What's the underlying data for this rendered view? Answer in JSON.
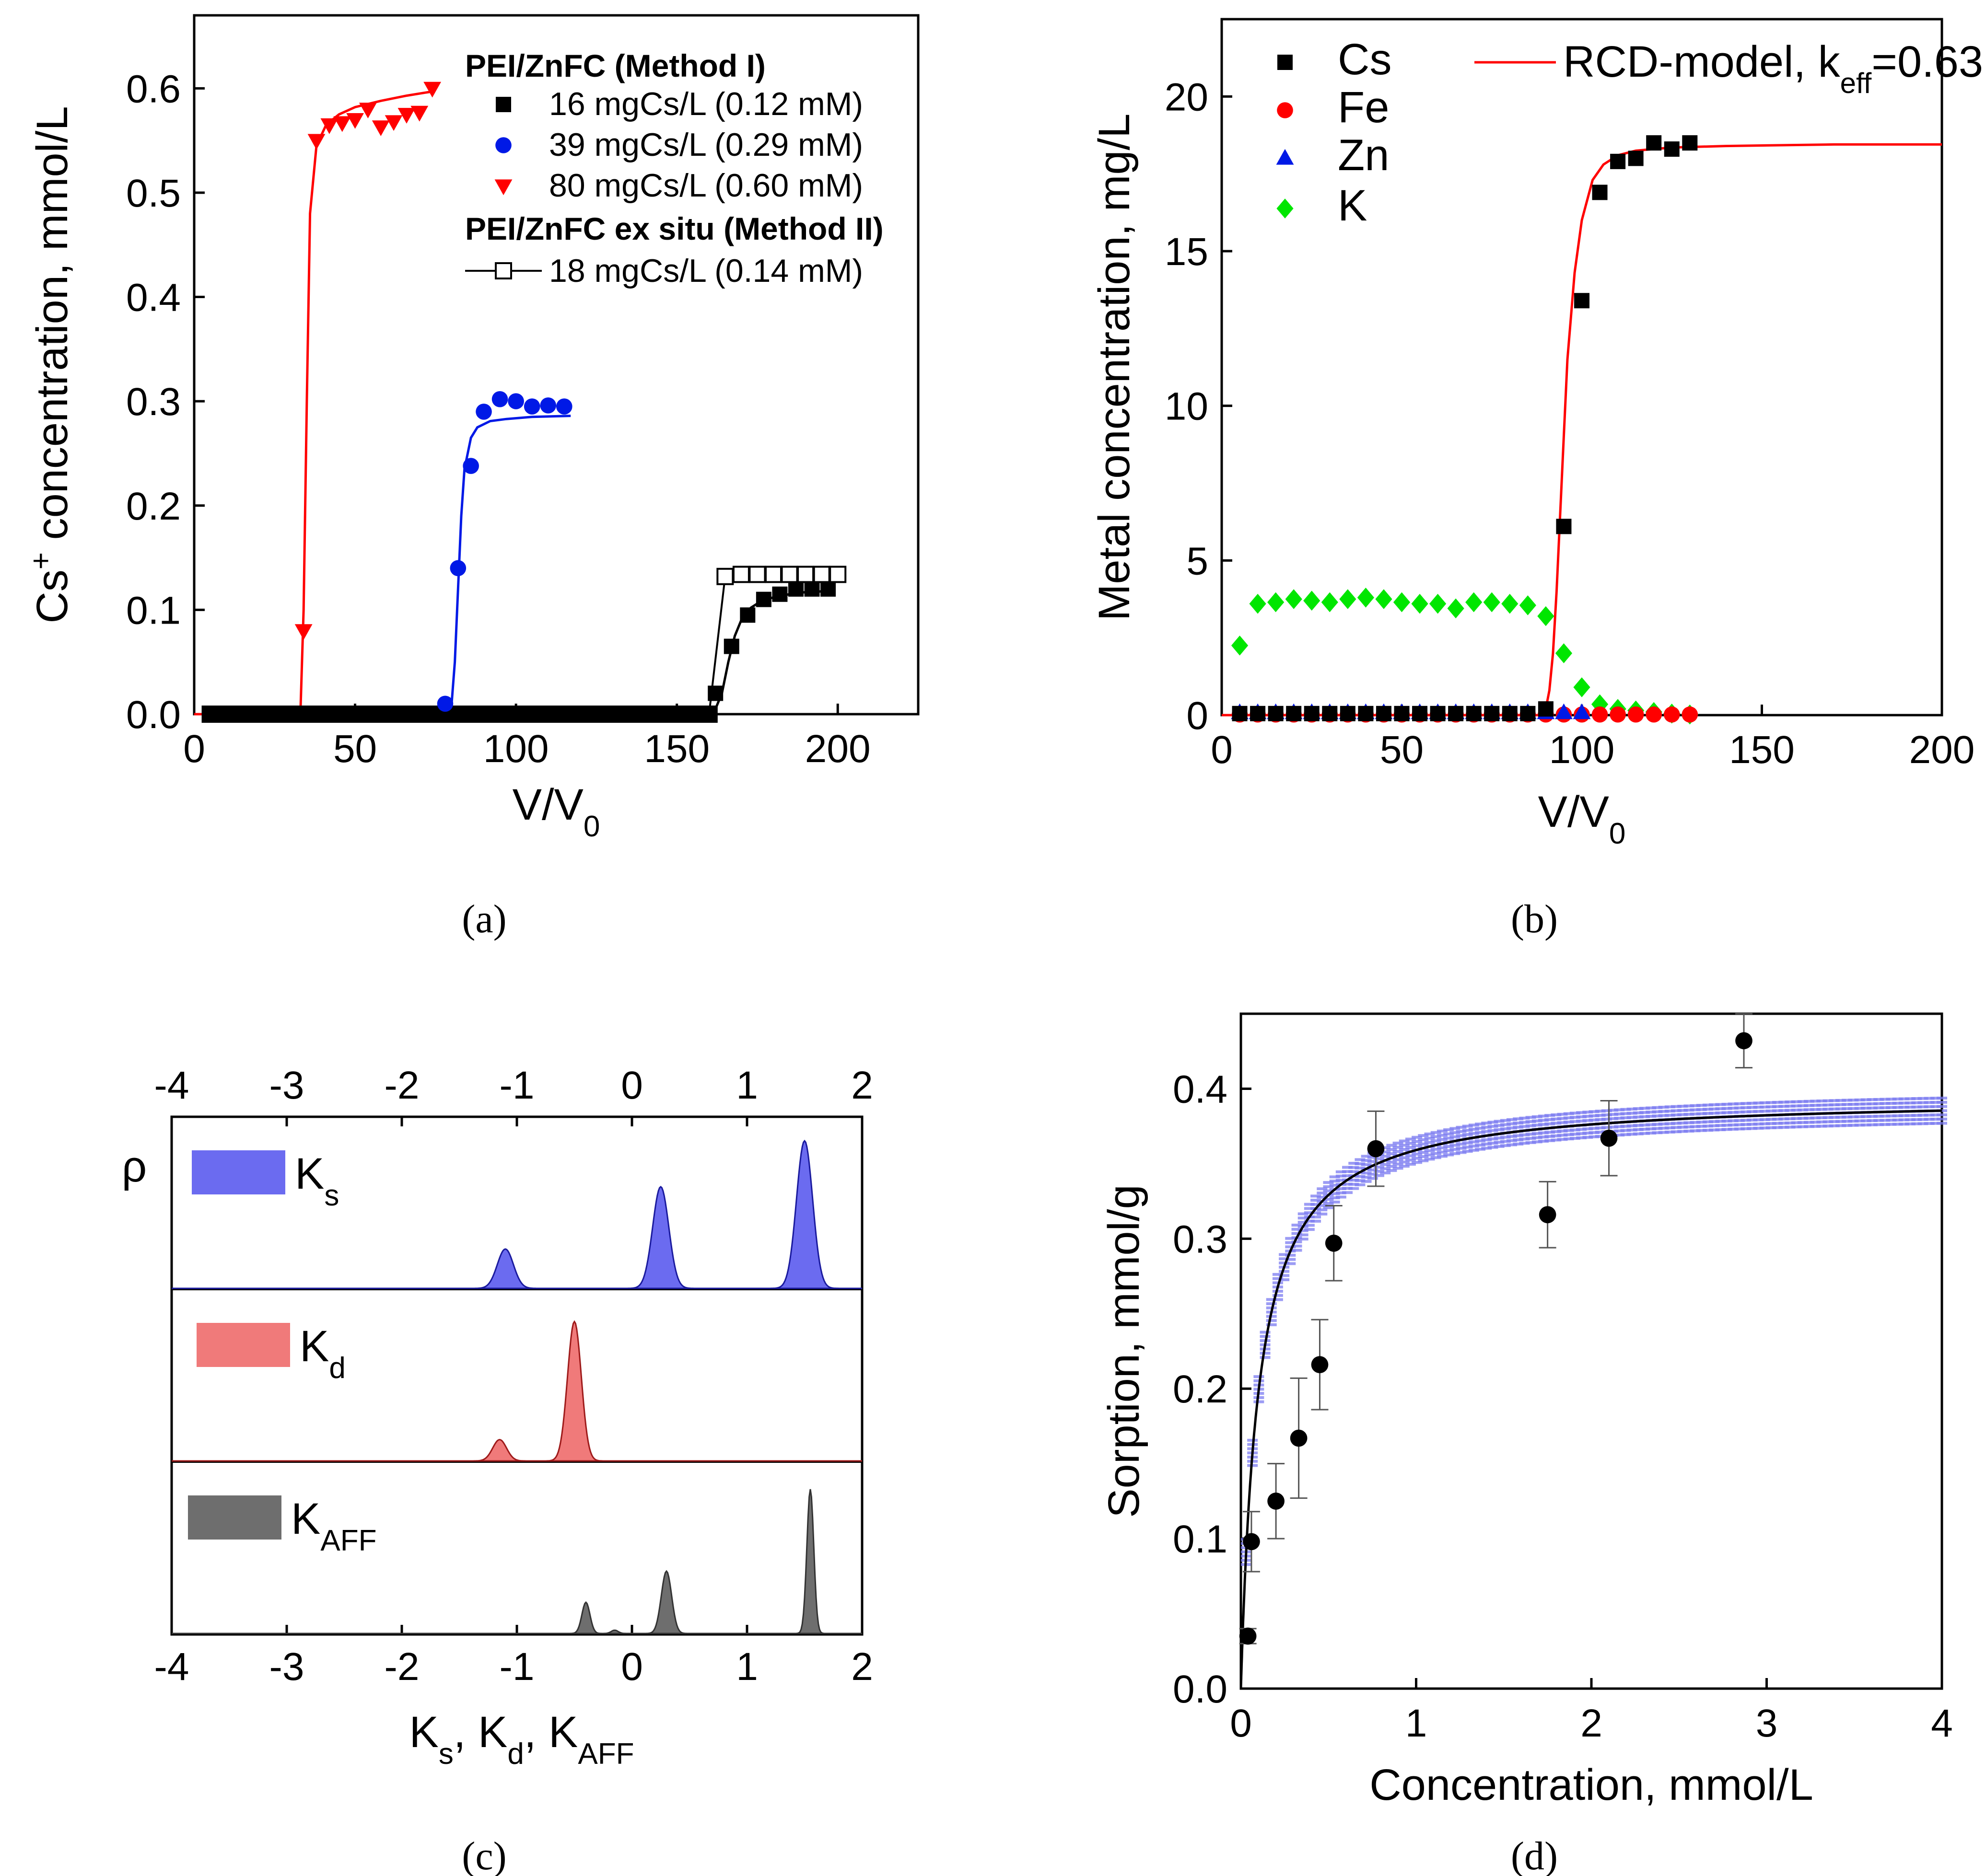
{
  "panel_labels": {
    "a": "(a)",
    "b": "(b)",
    "c": "(c)",
    "d": "(d)"
  },
  "chart_data": [
    {
      "id": "a",
      "type": "scatter",
      "xlabel": "V/V",
      "xlabel_sub": "0",
      "ylabel_pre": "Cs",
      "ylabel_sup": "+",
      "ylabel_post": " concentration, mmol/L",
      "xlim": [
        0,
        225
      ],
      "ylim": [
        0,
        0.67
      ],
      "xticks": [
        0,
        50,
        100,
        150,
        200
      ],
      "xtick_labels": [
        "0",
        "50",
        "100",
        "150",
        "200"
      ],
      "yticks": [
        0,
        0.1,
        0.2,
        0.3,
        0.4,
        0.5,
        0.6
      ],
      "ytick_labels": [
        "0.0",
        "0.1",
        "0.2",
        "0.3",
        "0.4",
        "0.5",
        "0.6"
      ],
      "legend_headers": [
        "PEI/ZnFC (Method I)",
        "PEI/ZnFC ex situ (Method II)"
      ],
      "series": [
        {
          "name": "16 mgCs/L (0.12 mM)",
          "color": "#000000",
          "marker": "square",
          "x": [
            5,
            10,
            15,
            20,
            25,
            30,
            35,
            40,
            45,
            50,
            55,
            60,
            65,
            70,
            75,
            80,
            85,
            90,
            95,
            100,
            105,
            110,
            115,
            120,
            125,
            130,
            135,
            140,
            145,
            150,
            155,
            160,
            162,
            167,
            172,
            177,
            182,
            187,
            192,
            197
          ],
          "y": [
            0,
            0,
            0,
            0,
            0,
            0,
            0,
            0,
            0,
            0,
            0,
            0,
            0,
            0,
            0,
            0,
            0,
            0,
            0,
            0,
            0,
            0,
            0,
            0,
            0,
            0,
            0,
            0,
            0,
            0,
            0,
            0,
            0.02,
            0.065,
            0.095,
            0.11,
            0.115,
            0.12,
            0.12,
            0.12
          ],
          "fit_x": [
            0,
            160,
            162,
            164,
            166,
            168,
            170,
            173,
            176,
            180,
            185,
            190,
            197
          ],
          "fit_y": [
            0,
            0,
            0.005,
            0.02,
            0.05,
            0.075,
            0.09,
            0.102,
            0.108,
            0.112,
            0.115,
            0.117,
            0.118
          ]
        },
        {
          "name": "39 mgCs/L (0.29 mM)",
          "color": "#0019e6",
          "marker": "circle",
          "x": [
            78,
            82,
            86,
            90,
            95,
            100,
            105,
            110,
            115
          ],
          "y": [
            0.01,
            0.14,
            0.238,
            0.29,
            0.302,
            0.3,
            0.295,
            0.296,
            0.295
          ],
          "fit_x": [
            0,
            78,
            80,
            81,
            82,
            83,
            84,
            86,
            88,
            92,
            97,
            105,
            117
          ],
          "fit_y": [
            0,
            0,
            0.01,
            0.05,
            0.12,
            0.19,
            0.235,
            0.265,
            0.275,
            0.281,
            0.283,
            0.285,
            0.286
          ]
        },
        {
          "name": "80 mgCs/L (0.60 mM)",
          "color": "#ff0000",
          "marker": "triangle-down",
          "x": [
            34,
            38,
            42,
            46,
            50,
            54,
            58,
            62,
            66,
            70,
            74
          ],
          "y": [
            0.08,
            0.55,
            0.565,
            0.567,
            0.57,
            0.58,
            0.563,
            0.568,
            0.575,
            0.577,
            0.6
          ],
          "fit_x": [
            0,
            33,
            34,
            35,
            36,
            38,
            41,
            45,
            50,
            58,
            66,
            74
          ],
          "fit_y": [
            0,
            0,
            0.1,
            0.3,
            0.48,
            0.545,
            0.565,
            0.575,
            0.582,
            0.588,
            0.593,
            0.597
          ]
        },
        {
          "name": "18 mgCs/L (0.14 mM)",
          "color": "#000000",
          "marker": "open-square",
          "line": true,
          "x": [
            5,
            10,
            15,
            20,
            25,
            30,
            35,
            40,
            45,
            50,
            55,
            60,
            65,
            70,
            75,
            80,
            85,
            90,
            95,
            100,
            105,
            110,
            115,
            120,
            125,
            130,
            135,
            140,
            145,
            150,
            155,
            160,
            165,
            170,
            175,
            180,
            185,
            190,
            195,
            200
          ],
          "y": [
            0,
            0,
            0,
            0,
            0,
            0,
            0,
            0,
            0,
            0,
            0,
            0,
            0,
            0,
            0,
            0,
            0,
            0,
            0,
            0,
            0,
            0,
            0,
            0,
            0,
            0,
            0,
            0,
            0,
            0,
            0,
            0,
            0.132,
            0.134,
            0.134,
            0.134,
            0.134,
            0.134,
            0.134,
            0.134
          ]
        }
      ]
    },
    {
      "id": "b",
      "type": "scatter",
      "xlabel": "V/V",
      "xlabel_sub": "0",
      "ylabel": "Metal concentration, mg/L",
      "xlim": [
        0,
        200
      ],
      "ylim": [
        0,
        22.5
      ],
      "xticks": [
        0,
        50,
        100,
        150,
        200
      ],
      "xtick_labels": [
        "0",
        "50",
        "100",
        "150",
        "200"
      ],
      "yticks": [
        0,
        5,
        10,
        15,
        20
      ],
      "ytick_labels": [
        "0",
        "5",
        "10",
        "15",
        "20"
      ],
      "model": {
        "label_pre": "RCD-model, k",
        "label_sub": "eff",
        "label_post": "=0.63",
        "color": "#ff0000",
        "x": [
          0,
          88,
          90,
          91,
          92,
          93,
          94,
          95,
          96,
          98,
          100,
          103,
          106,
          110,
          115,
          125,
          140,
          170,
          200
        ],
        "y": [
          0,
          0,
          0.2,
          0.8,
          2,
          4,
          6.5,
          9,
          11.5,
          14.3,
          16,
          17.3,
          17.8,
          18.1,
          18.25,
          18.35,
          18.4,
          18.45,
          18.45
        ]
      },
      "series": [
        {
          "name": "Cs",
          "color": "#000000",
          "marker": "square",
          "x": [
            5,
            10,
            15,
            20,
            25,
            30,
            35,
            40,
            45,
            50,
            55,
            60,
            65,
            70,
            75,
            80,
            85,
            90,
            95,
            100,
            105,
            110,
            115,
            120,
            125,
            130
          ],
          "y": [
            0.05,
            0.05,
            0.05,
            0.05,
            0.05,
            0.05,
            0.05,
            0.05,
            0.05,
            0.05,
            0.05,
            0.05,
            0.05,
            0.05,
            0.05,
            0.05,
            0.05,
            0.2,
            6.1,
            13.4,
            16.9,
            17.9,
            18.0,
            18.5,
            18.3,
            18.5
          ]
        },
        {
          "name": "Fe",
          "color": "#ff0000",
          "marker": "circle",
          "x": [
            5,
            10,
            15,
            20,
            25,
            30,
            35,
            40,
            45,
            50,
            55,
            60,
            65,
            70,
            75,
            80,
            85,
            90,
            95,
            100,
            105,
            110,
            115,
            120,
            125,
            130
          ],
          "y": [
            0.02,
            0.02,
            0.02,
            0.02,
            0.02,
            0.02,
            0.02,
            0.02,
            0.02,
            0.02,
            0.02,
            0.02,
            0.02,
            0.02,
            0.02,
            0.02,
            0.02,
            0.02,
            0.02,
            0.02,
            0.02,
            0.02,
            0.02,
            0.02,
            0.02,
            0.02
          ]
        },
        {
          "name": "Zn",
          "color": "#0019e6",
          "marker": "triangle-up",
          "x": [
            5,
            10,
            15,
            20,
            25,
            30,
            35,
            40,
            45,
            50,
            55,
            60,
            65,
            70,
            75,
            80,
            85,
            90,
            95,
            100
          ],
          "y": [
            0.08,
            0.08,
            0.08,
            0.08,
            0.08,
            0.08,
            0.08,
            0.08,
            0.08,
            0.08,
            0.08,
            0.08,
            0.08,
            0.08,
            0.08,
            0.08,
            0.08,
            0.08,
            0.08,
            0.08
          ]
        },
        {
          "name": "K",
          "color": "#00e600",
          "marker": "diamond",
          "x": [
            5,
            10,
            15,
            20,
            25,
            30,
            35,
            40,
            45,
            50,
            55,
            60,
            65,
            70,
            75,
            80,
            85,
            90,
            95,
            100,
            105,
            110,
            115,
            120,
            125,
            130
          ],
          "y": [
            2.25,
            3.6,
            3.65,
            3.75,
            3.7,
            3.65,
            3.75,
            3.8,
            3.75,
            3.65,
            3.6,
            3.6,
            3.45,
            3.65,
            3.65,
            3.6,
            3.55,
            3.2,
            2.0,
            0.9,
            0.35,
            0.2,
            0.15,
            0.1,
            0.05,
            0.02
          ]
        }
      ]
    },
    {
      "id": "c",
      "type": "area",
      "ylabel": "ρ",
      "xlabel_parts": [
        [
          "K",
          "s"
        ],
        [
          "K",
          "d"
        ],
        [
          "K",
          "AFF"
        ]
      ],
      "xlim": [
        -4,
        2
      ],
      "xticks": [
        -4,
        -3,
        -2,
        -1,
        0,
        1,
        2
      ],
      "xtick_labels": [
        "-4",
        "-3",
        "-2",
        "-1",
        "0",
        "1",
        "2"
      ],
      "series": [
        {
          "name": "K",
          "sub": "s",
          "color": "#6b6bf0",
          "edge": "#1a1a9e",
          "peaks": [
            {
              "center": -1.1,
              "height": 0.24,
              "width": 0.07
            },
            {
              "center": 0.25,
              "height": 0.62,
              "width": 0.07
            },
            {
              "center": 1.5,
              "height": 0.9,
              "width": 0.07
            }
          ]
        },
        {
          "name": "K",
          "sub": "d",
          "color": "#f07a7a",
          "edge": "#9e1a1a",
          "peaks": [
            {
              "center": -1.15,
              "height": 0.13,
              "width": 0.06
            },
            {
              "center": -0.5,
              "height": 0.85,
              "width": 0.06
            }
          ]
        },
        {
          "name": "K",
          "sub": "AFF",
          "color": "#6e6e6e",
          "edge": "#333333",
          "peaks": [
            {
              "center": -0.4,
              "height": 0.19,
              "width": 0.035
            },
            {
              "center": -0.15,
              "height": 0.02,
              "width": 0.03
            },
            {
              "center": 0.3,
              "height": 0.38,
              "width": 0.045
            },
            {
              "center": 1.55,
              "height": 0.88,
              "width": 0.03
            }
          ]
        }
      ]
    },
    {
      "id": "d",
      "type": "scatter",
      "xlabel": "Concentration, mmol/L",
      "ylabel": "Sorption, mmol/g",
      "xlim": [
        0,
        4
      ],
      "ylim": [
        0,
        0.45
      ],
      "xticks": [
        0,
        1,
        2,
        3,
        4
      ],
      "xtick_labels": [
        "0",
        "1",
        "2",
        "3",
        "4"
      ],
      "yticks": [
        0,
        0.1,
        0.2,
        0.3,
        0.4
      ],
      "ytick_labels": [
        "0.0",
        "0.1",
        "0.2",
        "0.3",
        "0.4"
      ],
      "fit": {
        "type": "langmuir",
        "qmax": 0.395,
        "K": 10
      },
      "band_color": "#7b7bf0",
      "points": {
        "color": "#000000",
        "x": [
          0.04,
          0.06,
          0.2,
          0.33,
          0.45,
          0.53,
          0.77,
          1.75,
          2.1,
          2.87
        ],
        "y": [
          0.035,
          0.098,
          0.125,
          0.167,
          0.216,
          0.297,
          0.36,
          0.316,
          0.367,
          0.432
        ],
        "err": [
          0.005,
          0.02,
          0.025,
          0.04,
          0.03,
          0.025,
          0.025,
          0.022,
          0.025,
          0.018
        ]
      }
    }
  ]
}
